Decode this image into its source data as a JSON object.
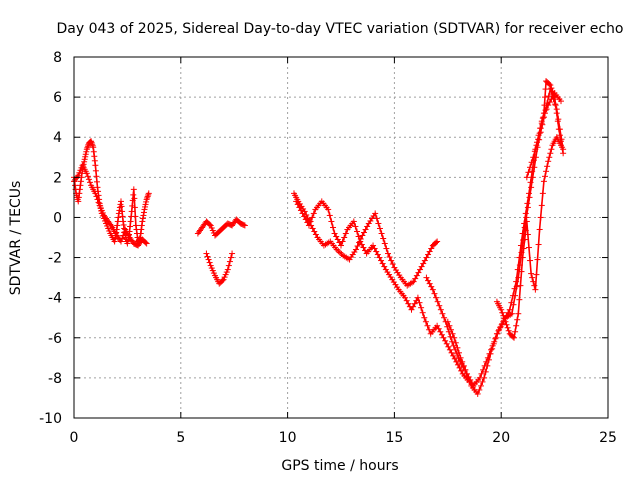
{
  "chart_data": {
    "type": "scatter",
    "title": "Day 043 of 2025, Sidereal Day-to-day VTEC variation (SDTVAR) for receiver echo",
    "xlabel": "GPS time / hours",
    "ylabel": "SDTVAR / TECUs",
    "xlim": [
      0,
      25
    ],
    "ylim": [
      -10,
      8
    ],
    "xticks": [
      "0",
      "5",
      "10",
      "15",
      "20",
      "25"
    ],
    "yticks": [
      "-10",
      "-8",
      "-6",
      "-4",
      "-2",
      "0",
      "2",
      "4",
      "6",
      "8"
    ],
    "grid": true,
    "marker": "plus",
    "color": "#ff0000",
    "segments": [
      {
        "x": [
          0.0,
          0.1,
          0.2,
          0.3,
          0.4,
          0.5,
          0.6,
          0.7,
          0.8,
          0.9,
          1.0,
          1.1,
          1.2,
          1.3,
          1.5,
          1.7,
          1.9,
          2.0,
          2.1,
          2.2,
          2.3,
          2.4,
          2.5,
          2.6,
          2.7,
          2.8,
          2.9,
          3.0,
          3.1,
          3.2,
          3.3,
          3.4,
          3.5
        ],
        "y": [
          2.0,
          1.2,
          0.8,
          1.6,
          2.4,
          2.9,
          3.4,
          3.7,
          3.8,
          3.5,
          2.6,
          1.5,
          0.7,
          0.2,
          -0.3,
          -0.8,
          -1.2,
          -0.6,
          0.2,
          0.8,
          -0.2,
          -0.9,
          -1.3,
          -0.7,
          0.3,
          1.4,
          -0.4,
          -1.2,
          -1.0,
          -0.2,
          0.4,
          0.9,
          1.2
        ]
      },
      {
        "x": [
          0.0,
          0.2,
          0.4,
          0.6,
          0.8,
          1.0,
          1.2,
          1.4,
          1.6,
          1.8,
          2.0,
          2.2,
          2.4,
          2.6,
          2.8,
          3.0,
          3.2,
          3.4
        ],
        "y": [
          1.8,
          2.1,
          2.6,
          2.2,
          1.6,
          1.2,
          0.6,
          0.1,
          -0.2,
          -0.5,
          -0.9,
          -1.2,
          -0.6,
          -1.0,
          -1.3,
          -1.4,
          -1.1,
          -1.3
        ]
      },
      {
        "x": [
          5.8,
          6.0,
          6.2,
          6.4,
          6.6,
          6.8,
          7.0,
          7.2,
          7.4,
          7.6,
          7.8,
          8.0
        ],
        "y": [
          -0.8,
          -0.5,
          -0.2,
          -0.4,
          -0.9,
          -0.7,
          -0.5,
          -0.3,
          -0.4,
          -0.1,
          -0.3,
          -0.4
        ]
      },
      {
        "x": [
          6.2,
          6.4,
          6.6,
          6.8,
          7.0,
          7.2,
          7.4
        ],
        "y": [
          -1.8,
          -2.4,
          -2.9,
          -3.3,
          -3.1,
          -2.6,
          -1.8
        ]
      },
      {
        "x": [
          10.3,
          10.5,
          10.8,
          11.1,
          11.4,
          11.7,
          12.0,
          12.3,
          12.6,
          12.9,
          13.2,
          13.5,
          13.8,
          14.1,
          14.4,
          14.7,
          15.0,
          15.3,
          15.6,
          15.9,
          16.2,
          16.5,
          16.8,
          17.0
        ],
        "y": [
          1.2,
          0.8,
          0.3,
          -0.4,
          -1.0,
          -1.4,
          -1.2,
          -1.6,
          -1.9,
          -2.1,
          -1.6,
          -0.9,
          -0.3,
          0.2,
          -0.8,
          -1.8,
          -2.5,
          -3.0,
          -3.4,
          -3.2,
          -2.6,
          -2.0,
          -1.4,
          -1.2
        ]
      },
      {
        "x": [
          10.4,
          10.7,
          11.0,
          11.3,
          11.6,
          11.9,
          12.2,
          12.5,
          12.8,
          13.1,
          13.4,
          13.7,
          14.0,
          14.3,
          14.6,
          14.9,
          15.2,
          15.5,
          15.8,
          16.1,
          16.4,
          16.7,
          17.0,
          17.3,
          17.6,
          17.9,
          18.2,
          18.5
        ],
        "y": [
          0.8,
          0.2,
          -0.4,
          0.4,
          0.8,
          0.4,
          -0.8,
          -1.4,
          -0.6,
          -0.2,
          -1.2,
          -1.8,
          -1.4,
          -2.0,
          -2.6,
          -3.1,
          -3.6,
          -4.0,
          -4.6,
          -4.0,
          -5.0,
          -5.8,
          -5.4,
          -6.0,
          -6.6,
          -7.2,
          -7.8,
          -8.2
        ]
      },
      {
        "x": [
          16.5,
          16.8,
          17.1,
          17.4,
          17.7,
          18.0,
          18.3,
          18.6,
          18.9,
          19.2,
          19.5,
          19.8,
          20.1,
          20.4,
          20.7,
          21.0,
          21.3,
          21.6,
          21.9,
          22.2,
          22.5,
          22.8
        ],
        "y": [
          -3.0,
          -3.6,
          -4.4,
          -5.2,
          -6.2,
          -7.0,
          -7.6,
          -8.4,
          -8.8,
          -8.0,
          -6.8,
          -5.8,
          -5.2,
          -4.6,
          -3.2,
          -0.8,
          1.2,
          3.4,
          4.8,
          5.6,
          6.2,
          5.8
        ]
      },
      {
        "x": [
          17.5,
          17.8,
          18.1,
          18.4,
          18.7,
          19.0,
          19.3,
          19.6,
          19.9,
          20.2,
          20.5,
          20.8,
          21.1,
          21.4,
          21.7,
          22.0,
          22.3,
          22.6,
          22.9
        ],
        "y": [
          -5.2,
          -6.0,
          -7.0,
          -7.8,
          -8.4,
          -8.0,
          -7.2,
          -6.4,
          -5.6,
          -5.0,
          -4.8,
          -3.0,
          -0.5,
          1.5,
          3.5,
          5.0,
          6.4,
          5.4,
          3.4
        ]
      },
      {
        "x": [
          19.8,
          20.0,
          20.2,
          20.4,
          20.6,
          20.8,
          21.0,
          21.2,
          21.4,
          21.6,
          21.8,
          22.0,
          22.2,
          22.4,
          22.6,
          22.8
        ],
        "y": [
          -4.2,
          -4.6,
          -5.2,
          -5.8,
          -6.0,
          -4.8,
          -2.0,
          -0.2,
          -2.8,
          -3.6,
          -0.6,
          1.8,
          2.8,
          3.6,
          4.0,
          3.6
        ]
      },
      {
        "x": [
          21.2,
          21.5,
          21.8,
          22.0,
          22.1,
          22.3,
          22.5,
          22.7,
          22.9
        ],
        "y": [
          2.0,
          3.0,
          4.2,
          5.2,
          6.8,
          6.6,
          6.0,
          4.4,
          3.2
        ]
      }
    ]
  }
}
